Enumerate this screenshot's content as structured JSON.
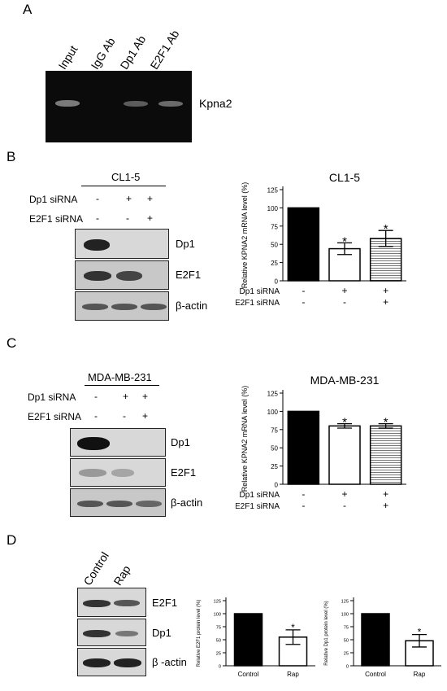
{
  "panelA": {
    "label": "A",
    "lanes": [
      "Input",
      "IgG Ab",
      "Dp1 Ab",
      "E2F1 Ab"
    ],
    "gene": "Kpna2"
  },
  "panelB": {
    "label": "B",
    "cell_line": "CL1-5",
    "rows": [
      {
        "name": "Dp1 siRNA",
        "signs": [
          "-",
          "+",
          "+"
        ]
      },
      {
        "name": "E2F1 siRNA",
        "signs": [
          "-",
          "-",
          "+"
        ]
      }
    ],
    "blots": [
      "Dp1",
      "E2F1",
      "β-actin"
    ]
  },
  "panelC": {
    "label": "C",
    "cell_line": "MDA-MB-231",
    "rows": [
      {
        "name": "Dp1 siRNA",
        "signs": [
          "-",
          "+",
          "+"
        ]
      },
      {
        "name": "E2F1 siRNA",
        "signs": [
          "-",
          "-",
          "+"
        ]
      }
    ],
    "blots": [
      "Dp1",
      "E2F1",
      "β-actin"
    ]
  },
  "panelD": {
    "label": "D",
    "lanes": [
      "Control",
      "Rap"
    ],
    "blots": [
      "E2F1",
      "Dp1",
      "β -actin"
    ]
  },
  "chart_data": [
    {
      "id": "chartB",
      "type": "bar",
      "title": "CL1-5",
      "ylabel": "Relative  KPNA2 mRNA level (%)",
      "ylim": [
        0,
        125
      ],
      "yticks": [
        0,
        25,
        50,
        75,
        100,
        125
      ],
      "row_labels": [
        "Dp1 siRNA",
        "E2F1 siRNA"
      ],
      "row_signs": [
        [
          "-",
          "+",
          "+"
        ],
        [
          "-",
          "-",
          "+"
        ]
      ],
      "values": [
        100,
        44,
        58
      ],
      "errors": [
        0,
        8,
        11
      ],
      "stars": [
        "",
        "*",
        "*"
      ],
      "fills": [
        "solid",
        "white",
        "hatched"
      ]
    },
    {
      "id": "chartC",
      "type": "bar",
      "title": "MDA-MB-231",
      "ylabel": "Relative  KPNA2 mRNA level (%)",
      "ylim": [
        0,
        125
      ],
      "yticks": [
        0,
        25,
        50,
        75,
        100,
        125
      ],
      "row_labels": [
        "Dp1 siRNA",
        "E2F1 siRNA"
      ],
      "row_signs": [
        [
          "-",
          "+",
          "+"
        ],
        [
          "-",
          "-",
          "+"
        ]
      ],
      "values": [
        100,
        80,
        80
      ],
      "errors": [
        0,
        3,
        3
      ],
      "stars": [
        "",
        "*",
        "*"
      ],
      "fills": [
        "solid",
        "white",
        "hatched"
      ]
    },
    {
      "id": "chartD1",
      "type": "bar",
      "ylabel": "Relative  E2F1 protein level (%)",
      "ylim": [
        0,
        125
      ],
      "yticks": [
        0,
        25,
        50,
        75,
        100,
        125
      ],
      "categories": [
        "Control",
        "Rap"
      ],
      "values": [
        100,
        55
      ],
      "errors": [
        0,
        14
      ],
      "stars": [
        "",
        "*"
      ],
      "fills": [
        "solid",
        "white"
      ]
    },
    {
      "id": "chartD2",
      "type": "bar",
      "ylabel": "Relative  Dp1 protein level (%)",
      "ylim": [
        0,
        125
      ],
      "yticks": [
        0,
        25,
        50,
        75,
        100,
        125
      ],
      "categories": [
        "Control",
        "Rap"
      ],
      "values": [
        100,
        48
      ],
      "errors": [
        0,
        12
      ],
      "stars": [
        "",
        "*"
      ],
      "fills": [
        "solid",
        "white"
      ]
    }
  ]
}
